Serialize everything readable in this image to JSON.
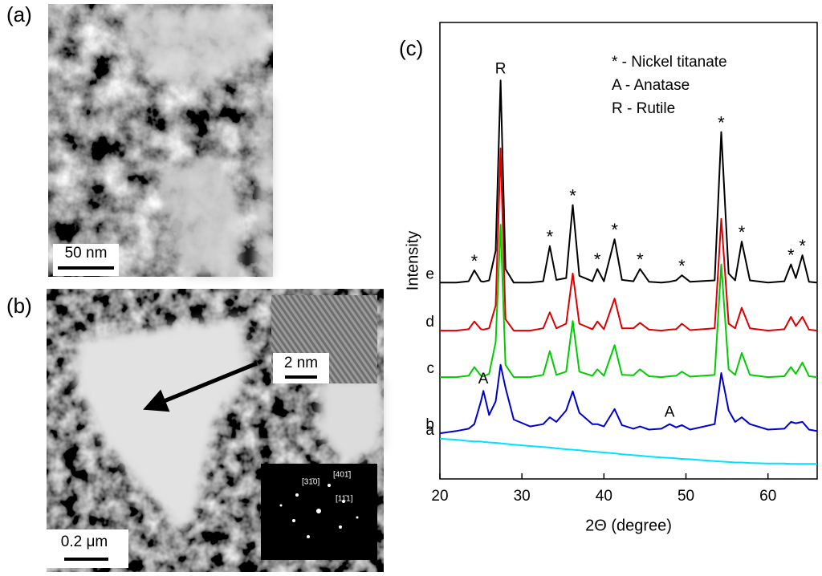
{
  "figure": {
    "a": {
      "label": "(a)",
      "scale_bar": "50 nm"
    },
    "b": {
      "label": "(b)",
      "scale_bar": "0.2 μm",
      "inset_scale_bar": "2 nm",
      "diffraction_spots": [
        "[31̄0]",
        "[401̄]",
        "[11̄1]"
      ]
    }
  },
  "chart_data": {
    "type": "line",
    "panel_label": "(c)",
    "xlabel": "2Θ (degree)",
    "ylabel": "Intensity",
    "legend_notes": [
      "* - Nickel titanate",
      "A - Anatase",
      "R - Rutile"
    ],
    "xlim": [
      20,
      66
    ],
    "xticks": [
      20,
      30,
      40,
      50,
      60
    ],
    "ylim": [
      0,
      100
    ],
    "x": [
      20,
      22,
      23.5,
      24.2,
      25,
      25.3,
      26,
      26.8,
      27.4,
      28,
      29,
      31,
      32.6,
      33.4,
      34.2,
      35.4,
      36.2,
      37,
      38.6,
      39.2,
      40,
      41.3,
      42.2,
      43.6,
      44.4,
      45.5,
      47,
      48,
      48.8,
      49.5,
      50.5,
      53.5,
      54.3,
      55.2,
      56,
      56.8,
      57.8,
      60,
      62,
      62.8,
      63.4,
      64.2,
      65,
      66
    ],
    "series": [
      {
        "name": "a",
        "color": "#00e0ff",
        "values": [
          8.8,
          8.6,
          8.3,
          8.2,
          8.2,
          8.1,
          8,
          7.9,
          7.8,
          7.7,
          7.5,
          7.2,
          7,
          6.9,
          6.7,
          6.5,
          6.4,
          6.3,
          6,
          5.9,
          5.8,
          5.6,
          5.4,
          5.2,
          5.1,
          4.9,
          4.7,
          4.6,
          4.5,
          4.4,
          4.3,
          3.9,
          3.8,
          3.7,
          3.6,
          3.6,
          3.5,
          3.4,
          3.4,
          3.3,
          3.3,
          3.3,
          3.3,
          3.3
        ]
      },
      {
        "name": "b",
        "color": "#0000cc",
        "values": [
          10,
          10.5,
          11,
          12,
          17,
          19.3,
          14,
          17,
          25,
          20,
          13,
          11.5,
          12,
          13.5,
          12.5,
          15,
          19.2,
          14.5,
          12,
          12,
          11.5,
          15.3,
          11.8,
          11,
          11.5,
          10.8,
          11,
          12,
          11.3,
          11.8,
          10.8,
          12,
          23.2,
          15,
          12.5,
          13.5,
          12,
          10.8,
          11,
          12.5,
          12.2,
          12.5,
          10.8,
          10.5
        ],
        "peak_labels": [
          {
            "label": "A",
            "x": 25.3
          },
          {
            "label": "A",
            "x": 48
          }
        ]
      },
      {
        "name": "c",
        "color": "#00cc00",
        "values": [
          22.3,
          22.3,
          22.6,
          24.5,
          22.6,
          22.5,
          23,
          30,
          55.7,
          25,
          22.3,
          22.3,
          22.8,
          28,
          22.8,
          23.5,
          34.6,
          23.5,
          22.6,
          24,
          22.6,
          29.3,
          22.8,
          22.7,
          24,
          22.5,
          22.3,
          22.5,
          22.6,
          23.5,
          22.4,
          22.8,
          47,
          24,
          22.8,
          27.6,
          22.8,
          22.3,
          22.5,
          24.5,
          23,
          25.5,
          22.5,
          22.3
        ]
      },
      {
        "name": "d",
        "color": "#dd0000",
        "values": [
          32.5,
          32.5,
          32.8,
          34.5,
          32.8,
          32.7,
          33,
          38,
          72.4,
          35,
          32.5,
          32.5,
          33,
          36.5,
          33,
          34,
          45,
          34,
          32.8,
          34.5,
          32.8,
          39.5,
          33,
          33,
          34.2,
          32.7,
          32.5,
          32.7,
          32.8,
          34,
          32.6,
          33,
          57,
          34,
          33,
          37.5,
          33,
          32.5,
          32.8,
          35.5,
          33.5,
          35.5,
          32.7,
          32.5
        ]
      },
      {
        "name": "e",
        "color": "#000000",
        "values": [
          43,
          43,
          43.3,
          45.7,
          43.3,
          43.2,
          43.5,
          50,
          87.3,
          46,
          43,
          43,
          43.3,
          51,
          43.6,
          44,
          60,
          44.5,
          43.3,
          46,
          43.3,
          52.5,
          43.6,
          43.3,
          46,
          43.2,
          43,
          43.2,
          43.5,
          44.6,
          43.2,
          43.5,
          76,
          45,
          43.5,
          52,
          43.5,
          43,
          43.3,
          47,
          44,
          49,
          43.2,
          43
        ],
        "peak_labels": [
          {
            "label": "*",
            "x": 24.2
          },
          {
            "label": "R",
            "x": 27.4
          },
          {
            "label": "*",
            "x": 33.4
          },
          {
            "label": "*",
            "x": 36.2
          },
          {
            "label": "*",
            "x": 39.2
          },
          {
            "label": "*",
            "x": 41.3
          },
          {
            "label": "*",
            "x": 44.4
          },
          {
            "label": "*",
            "x": 49.5
          },
          {
            "label": "*",
            "x": 54.3
          },
          {
            "label": "*",
            "x": 56.8
          },
          {
            "label": "*",
            "x": 62.8
          },
          {
            "label": "*",
            "x": 64.2
          }
        ]
      }
    ]
  }
}
